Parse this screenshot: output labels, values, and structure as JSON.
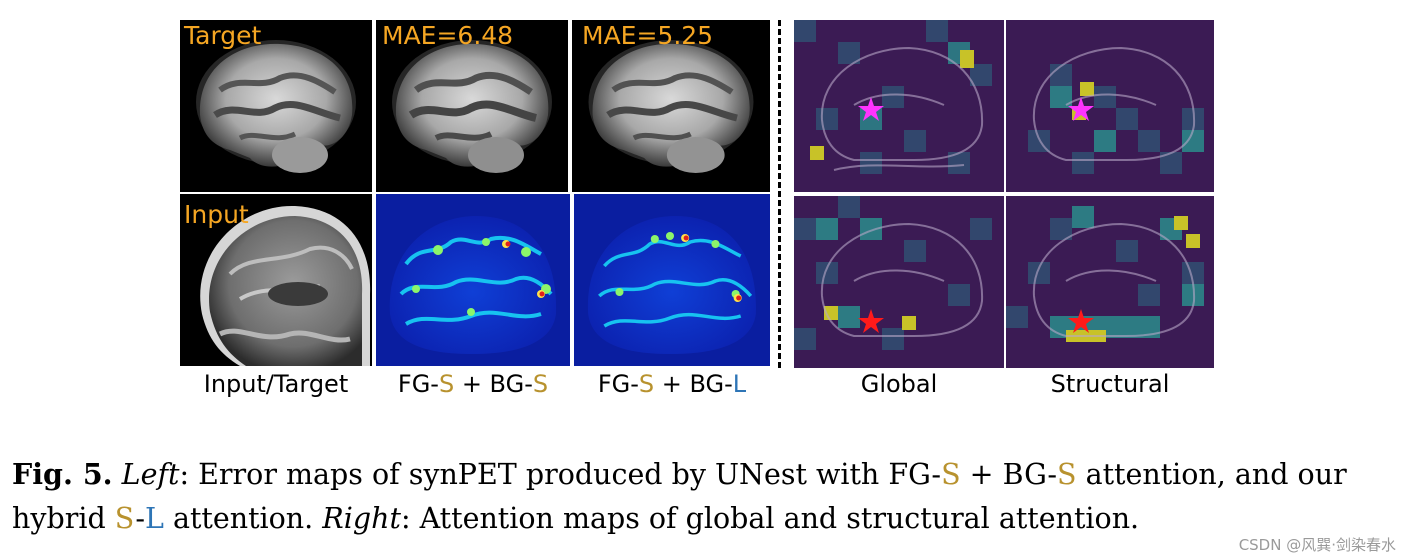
{
  "panels": {
    "target_label": "Target",
    "mae_ss": "MAE=6.48",
    "mae_sl": "MAE=5.25",
    "input_label": "Input"
  },
  "columns": {
    "col1": "Input/Target",
    "col2": {
      "fg": "FG-",
      "s1": "S",
      "plus": " + BG-",
      "s2": "S"
    },
    "col3": {
      "fg": "FG-",
      "s1": "S",
      "plus": " + BG-",
      "l": "L"
    },
    "col4": "Global",
    "col5": "Structural"
  },
  "colors": {
    "overlay_text": "#f5a623",
    "S": "#b8922e",
    "L": "#2e75b6",
    "star_top": "#ff33ff",
    "star_bottom": "#ff1a1a"
  },
  "caption": {
    "fig": "Fig. 5.",
    "left": "Left",
    "t1": ": Error maps of synPET produced by UNest with FG-",
    "s1": "S",
    "t2": " + BG-",
    "s2": "S",
    "t3": " attention, and our hybrid ",
    "s3": "S",
    "dash": "-",
    "l": "L",
    "t4": " attention. ",
    "right": "Right",
    "t5": ": Attention maps of global and structural attention."
  },
  "watermark": "CSDN @风巽·剑染春水"
}
